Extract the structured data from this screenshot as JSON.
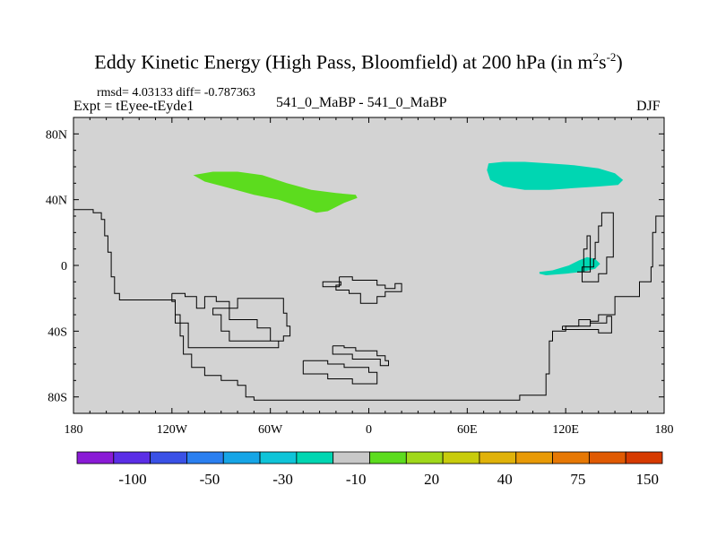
{
  "chart_data": {
    "type": "map-contour",
    "title": "Eddy Kinetic Energy (High Pass, Bloomfield) at 200 hPa (in m",
    "title_units_exp1": "2",
    "title_units_mid": "s",
    "title_units_exp2": "-2",
    "title_units_close": ")",
    "stats": "rmsd= 4.03133  diff= -0.787363",
    "expt": "Expt = tEyee-tEyde1",
    "case": "541_0_MaBP - 541_0_MaBP",
    "season": "DJF",
    "xlim": [
      -180,
      180
    ],
    "ylim": [
      -90,
      90
    ],
    "x_ticks": [
      {
        "value": -180,
        "label": "180"
      },
      {
        "value": -120,
        "label": "120W"
      },
      {
        "value": -60,
        "label": "60W"
      },
      {
        "value": 0,
        "label": "0"
      },
      {
        "value": 60,
        "label": "60E"
      },
      {
        "value": 120,
        "label": "120E"
      },
      {
        "value": 180,
        "label": "180"
      }
    ],
    "y_ticks": [
      {
        "value": 80,
        "label": "80N"
      },
      {
        "value": 40,
        "label": "40N"
      },
      {
        "value": 0,
        "label": "0"
      },
      {
        "value": -40,
        "label": "40S"
      },
      {
        "value": -80,
        "label": "80S"
      }
    ],
    "background_color": "#d3d3d3",
    "regions": [
      {
        "name": "positive-anomaly-north-atlantic",
        "color": "#5cdc1e",
        "points": [
          [
            -107,
            55
          ],
          [
            -95,
            57
          ],
          [
            -80,
            57
          ],
          [
            -65,
            55
          ],
          [
            -50,
            50
          ],
          [
            -35,
            46
          ],
          [
            -20,
            44
          ],
          [
            -8,
            43
          ],
          [
            -7,
            41
          ],
          [
            -15,
            38
          ],
          [
            -25,
            33
          ],
          [
            -32,
            32
          ],
          [
            -40,
            35
          ],
          [
            -55,
            40
          ],
          [
            -70,
            43
          ],
          [
            -85,
            47
          ],
          [
            -100,
            51
          ]
        ]
      },
      {
        "name": "negative-anomaly-north-pacific",
        "color": "#00d6b2",
        "points": [
          [
            73,
            62
          ],
          [
            82,
            63
          ],
          [
            95,
            63
          ],
          [
            110,
            62
          ],
          [
            125,
            61
          ],
          [
            140,
            59
          ],
          [
            150,
            56
          ],
          [
            155,
            52
          ],
          [
            152,
            49
          ],
          [
            140,
            48
          ],
          [
            125,
            47
          ],
          [
            110,
            46
          ],
          [
            95,
            46
          ],
          [
            82,
            48
          ],
          [
            74,
            52
          ],
          [
            72,
            58
          ]
        ]
      },
      {
        "name": "negative-anomaly-tropical-pacific",
        "color": "#00d6b2",
        "points": [
          [
            104,
            -4
          ],
          [
            112,
            -3
          ],
          [
            122,
            0
          ],
          [
            128,
            3
          ],
          [
            133,
            5
          ],
          [
            138,
            4
          ],
          [
            141,
            1
          ],
          [
            138,
            -2
          ],
          [
            130,
            -4
          ],
          [
            120,
            -5
          ],
          [
            108,
            -6
          ],
          [
            104,
            -5
          ]
        ]
      }
    ],
    "contours": [
      {
        "name": "contour-west-boundary",
        "points": [
          [
            -180,
            34
          ],
          [
            -168,
            34
          ],
          [
            -168,
            32
          ],
          [
            -163,
            32
          ],
          [
            -163,
            28
          ],
          [
            -161,
            28
          ],
          [
            -161,
            18
          ],
          [
            -159,
            18
          ],
          [
            -159,
            8
          ],
          [
            -157,
            8
          ],
          [
            -157,
            -7
          ],
          [
            -155,
            -7
          ],
          [
            -155,
            -17
          ],
          [
            -152,
            -17
          ],
          [
            -152,
            -21
          ],
          [
            -118,
            -21
          ],
          [
            -118,
            -30
          ],
          [
            -115,
            -30
          ],
          [
            -115,
            -43
          ],
          [
            -113,
            -43
          ],
          [
            -113,
            -54
          ],
          [
            -108,
            -54
          ],
          [
            -108,
            -62
          ],
          [
            -100,
            -62
          ],
          [
            -100,
            -67
          ],
          [
            -90,
            -67
          ],
          [
            -90,
            -70
          ],
          [
            -80,
            -70
          ],
          [
            -80,
            -73
          ],
          [
            -75,
            -73
          ],
          [
            -75,
            -80
          ],
          [
            -70,
            -80
          ],
          [
            -70,
            -82
          ],
          [
            92,
            -82
          ],
          [
            92,
            -79
          ],
          [
            108,
            -79
          ],
          [
            108,
            -66
          ],
          [
            110,
            -66
          ],
          [
            110,
            -46
          ],
          [
            112,
            -46
          ],
          [
            112,
            -40
          ],
          [
            120,
            -40
          ],
          [
            120,
            -37
          ],
          [
            135,
            -37
          ],
          [
            135,
            -34
          ],
          [
            140,
            -34
          ],
          [
            140,
            -30
          ],
          [
            150,
            -30
          ],
          [
            150,
            -19
          ],
          [
            165,
            -19
          ],
          [
            165,
            -10
          ],
          [
            172,
            -10
          ],
          [
            172,
            -1
          ],
          [
            173,
            -1
          ],
          [
            173,
            20
          ],
          [
            175,
            20
          ],
          [
            175,
            30
          ],
          [
            180,
            30
          ]
        ]
      },
      {
        "name": "contour-western-island",
        "points": [
          [
            -120,
            -17
          ],
          [
            -112,
            -17
          ],
          [
            -112,
            -19
          ],
          [
            -105,
            -19
          ],
          [
            -105,
            -26
          ],
          [
            -100,
            -26
          ],
          [
            -100,
            -19
          ],
          [
            -93,
            -19
          ],
          [
            -93,
            -22
          ],
          [
            -85,
            -22
          ],
          [
            -85,
            -33
          ],
          [
            -68,
            -33
          ],
          [
            -68,
            -38
          ],
          [
            -60,
            -38
          ],
          [
            -60,
            -46
          ],
          [
            -52,
            -46
          ],
          [
            -52,
            -43
          ],
          [
            -48,
            -43
          ],
          [
            -48,
            -37
          ],
          [
            -50,
            -37
          ],
          [
            -50,
            -29
          ],
          [
            -52,
            -29
          ],
          [
            -52,
            -20
          ],
          [
            -80,
            -20
          ],
          [
            -80,
            -26
          ],
          [
            -95,
            -26
          ],
          [
            -95,
            -30
          ],
          [
            -90,
            -30
          ],
          [
            -90,
            -40
          ],
          [
            -85,
            -40
          ],
          [
            -85,
            -46
          ],
          [
            -55,
            -46
          ],
          [
            -55,
            -50
          ],
          [
            -110,
            -50
          ],
          [
            -110,
            -35
          ],
          [
            -118,
            -35
          ],
          [
            -118,
            -22
          ],
          [
            -120,
            -22
          ],
          [
            -120,
            -17
          ]
        ]
      },
      {
        "name": "contour-central-pacific-small",
        "points": [
          [
            -18,
            -7
          ],
          [
            -10,
            -7
          ],
          [
            -10,
            -9
          ],
          [
            5,
            -9
          ],
          [
            5,
            -12
          ],
          [
            10,
            -12
          ],
          [
            10,
            -14
          ],
          [
            16,
            -14
          ],
          [
            16,
            -11
          ],
          [
            20,
            -11
          ],
          [
            20,
            -16
          ],
          [
            10,
            -16
          ],
          [
            10,
            -19
          ],
          [
            5,
            -19
          ],
          [
            5,
            -23
          ],
          [
            -5,
            -23
          ],
          [
            -5,
            -17
          ],
          [
            -12,
            -17
          ],
          [
            -12,
            -15
          ],
          [
            -20,
            -15
          ],
          [
            -20,
            -12
          ],
          [
            -17,
            -12
          ],
          [
            -17,
            -10
          ],
          [
            -28,
            -10
          ],
          [
            -28,
            -13
          ],
          [
            -18,
            -13
          ],
          [
            -18,
            -7
          ]
        ]
      },
      {
        "name": "contour-southern-upper",
        "points": [
          [
            -22,
            -49
          ],
          [
            -15,
            -49
          ],
          [
            -15,
            -50
          ],
          [
            -8,
            -50
          ],
          [
            -8,
            -52
          ],
          [
            5,
            -52
          ],
          [
            5,
            -55
          ],
          [
            10,
            -55
          ],
          [
            10,
            -58
          ],
          [
            12,
            -58
          ],
          [
            12,
            -61
          ],
          [
            7,
            -61
          ],
          [
            7,
            -57
          ],
          [
            -10,
            -57
          ],
          [
            -10,
            -54
          ],
          [
            -22,
            -54
          ],
          [
            -22,
            -49
          ]
        ]
      },
      {
        "name": "contour-southern-lower",
        "points": [
          [
            -40,
            -58
          ],
          [
            -25,
            -58
          ],
          [
            -25,
            -60
          ],
          [
            -15,
            -60
          ],
          [
            -15,
            -62
          ],
          [
            0,
            -62
          ],
          [
            0,
            -65
          ],
          [
            5,
            -65
          ],
          [
            5,
            -72
          ],
          [
            -10,
            -72
          ],
          [
            -10,
            -69
          ],
          [
            -25,
            -69
          ],
          [
            -25,
            -66
          ],
          [
            -40,
            -66
          ],
          [
            -40,
            -58
          ]
        ]
      },
      {
        "name": "contour-east-coast-upper",
        "points": [
          [
            133,
            -1
          ],
          [
            137,
            -1
          ],
          [
            137,
            4
          ],
          [
            138,
            4
          ],
          [
            138,
            14
          ],
          [
            140,
            14
          ],
          [
            140,
            24
          ],
          [
            142,
            24
          ],
          [
            142,
            32
          ],
          [
            149,
            32
          ],
          [
            149,
            5
          ],
          [
            145,
            5
          ],
          [
            145,
            -5
          ],
          [
            140,
            -5
          ],
          [
            140,
            -10
          ],
          [
            130,
            -10
          ],
          [
            130,
            -1
          ],
          [
            133,
            -1
          ]
        ]
      },
      {
        "name": "contour-east-coast-mid",
        "points": [
          [
            127,
            -4
          ],
          [
            131,
            -4
          ],
          [
            131,
            10
          ],
          [
            133,
            10
          ],
          [
            133,
            18
          ],
          [
            135,
            18
          ],
          [
            135,
            -4
          ],
          [
            127,
            -4
          ]
        ]
      },
      {
        "name": "contour-east-coast-lower",
        "points": [
          [
            118,
            -37
          ],
          [
            128,
            -37
          ],
          [
            128,
            -33
          ],
          [
            135,
            -33
          ],
          [
            135,
            -35
          ],
          [
            145,
            -35
          ],
          [
            145,
            -31
          ],
          [
            148,
            -31
          ],
          [
            148,
            -41
          ],
          [
            140,
            -41
          ],
          [
            140,
            -39
          ],
          [
            118,
            -39
          ],
          [
            118,
            -37
          ]
        ]
      }
    ],
    "colorbar": {
      "colors": [
        "#8a1bd6",
        "#5b2ee6",
        "#3a51e6",
        "#2a7ff0",
        "#16a5e6",
        "#0fc4d8",
        "#00d6b2",
        "#c8c8c8",
        "#5cdc1e",
        "#a0d81a",
        "#c8cc0c",
        "#e0b20a",
        "#e89a06",
        "#e67804",
        "#e05a02",
        "#d63a00"
      ],
      "labels": [
        {
          "slot": 2,
          "label": "-100"
        },
        {
          "slot": 4,
          "label": "-50"
        },
        {
          "slot": 6,
          "label": "-30"
        },
        {
          "slot": 8,
          "label": "-10"
        },
        {
          "slot": 10,
          "label": "20"
        },
        {
          "slot": 12,
          "label": "40"
        },
        {
          "slot": 14,
          "label": "75"
        },
        {
          "slot": 16,
          "label": "150"
        }
      ]
    }
  }
}
